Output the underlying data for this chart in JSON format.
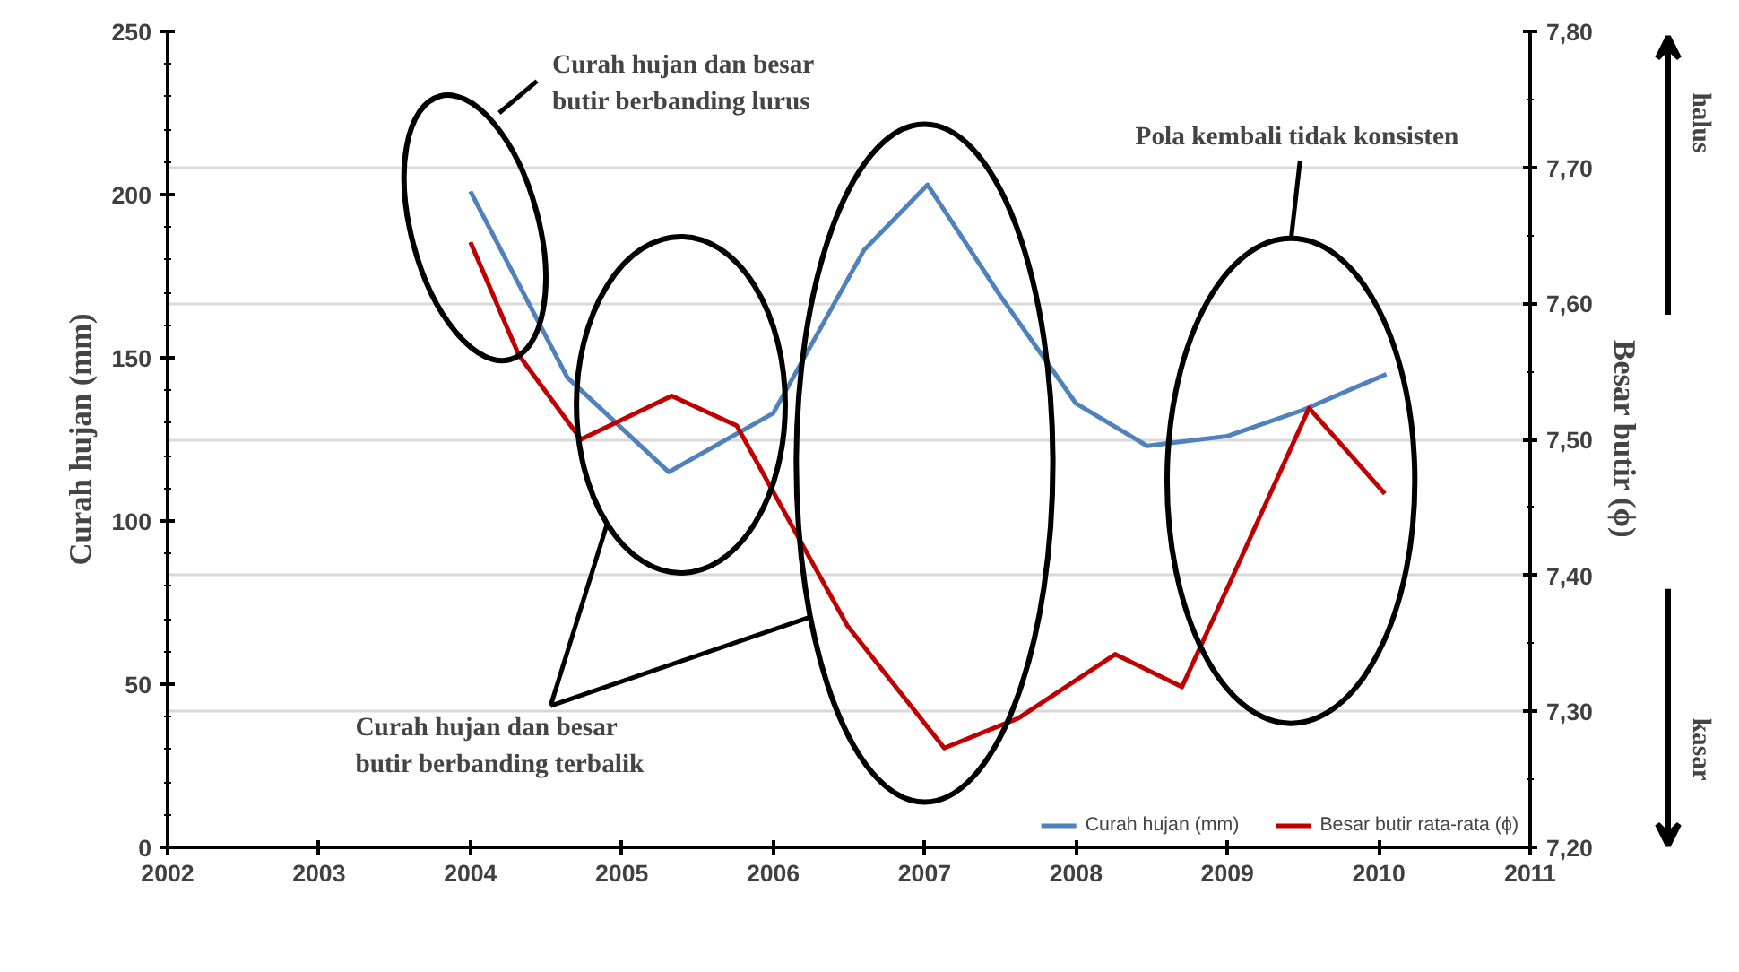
{
  "chart_data": {
    "type": "line",
    "ylabel": "Curah hujan (mm)",
    "y2label": "Besar butir (ϕ)",
    "series": [
      {
        "name": "Curah hujan (mm)",
        "color": "#4f81bd",
        "x": [
          2004.0,
          2004.64,
          2005.31,
          2006.0,
          2006.6,
          2007.02,
          2007.5,
          2008.0,
          2008.47,
          2009.0,
          2009.5,
          2010.05
        ],
        "values": [
          201,
          144,
          115,
          133,
          183,
          203,
          169,
          136,
          123,
          126,
          134,
          145
        ]
      },
      {
        "name": "Besar butir rata-rata (ϕ)",
        "color": "#c00000",
        "axis": "y2",
        "x": [
          2004.0,
          2004.32,
          2004.73,
          2005.33,
          2005.76,
          2006.23,
          2006.49,
          2007.13,
          2007.62,
          2008.26,
          2008.7,
          2009.01,
          2009.54,
          2010.04
        ],
        "values": [
          7.645,
          7.562,
          7.5,
          7.532,
          7.51,
          7.415,
          7.363,
          7.273,
          7.295,
          7.342,
          7.318,
          7.393,
          7.523,
          7.46
        ]
      }
    ],
    "xlim": [
      2002,
      2011
    ],
    "xticks": [
      2002,
      2003,
      2004,
      2005,
      2006,
      2007,
      2008,
      2009,
      2010,
      2011
    ],
    "ylim": [
      0,
      250
    ],
    "yticks": [
      0,
      50,
      100,
      150,
      200,
      250
    ],
    "y2lim": [
      7.2,
      7.8
    ],
    "y2ticks": [
      {
        "value": 7.2,
        "label": "7,20"
      },
      {
        "value": 7.3,
        "label": "7,30"
      },
      {
        "value": 7.4,
        "label": "7,40"
      },
      {
        "value": 7.5,
        "label": "7,50"
      },
      {
        "value": 7.6,
        "label": "7,60"
      },
      {
        "value": 7.7,
        "label": "7,70"
      },
      {
        "value": 7.8,
        "label": "7,80"
      }
    ],
    "grid": "y2",
    "legend": "bottom",
    "annotations": [
      "Curah hujan dan besar\nbutir berbanding lurus",
      "Curah hujan dan besar\nbutir berbanding terbalik",
      "Pola kembali tidak konsisten",
      "halus",
      "kasar"
    ]
  }
}
